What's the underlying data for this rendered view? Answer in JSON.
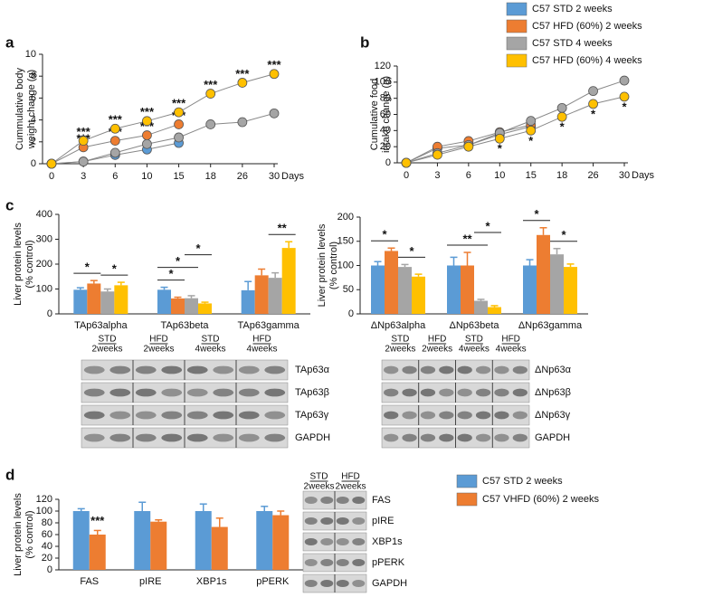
{
  "panel_labels": [
    "a",
    "b",
    "c",
    "d"
  ],
  "legend": [
    {
      "name": "C57 STD 2 weeks",
      "color": "#5b9bd5"
    },
    {
      "name": "C57 HFD (60%) 2 weeks",
      "color": "#ed7d31"
    },
    {
      "name": "C57 STD 4 weeks",
      "color": "#a5a5a5"
    },
    {
      "name": "C57 HFD (60%) 4 weeks",
      "color": "#ffc000"
    }
  ],
  "chart_data": [
    {
      "type": "line",
      "y_label": [
        "Cummulative body",
        "weight change (g)"
      ],
      "x_label": "Days",
      "categories": [
        "0",
        "3",
        "6",
        "10",
        "15",
        "18",
        "26",
        "30"
      ],
      "ylim": [
        0,
        10
      ],
      "yticks": [
        0,
        2,
        4,
        6,
        8,
        10
      ],
      "series": [
        {
          "color": "#5b9bd5",
          "values": [
            0,
            0.2,
            0.8,
            1.3,
            1.9,
            null,
            null,
            null
          ],
          "marks": [
            null,
            null,
            null,
            null,
            null,
            null,
            null,
            null
          ]
        },
        {
          "color": "#ed7d31",
          "values": [
            0,
            1.5,
            2.1,
            2.6,
            3.6,
            null,
            null,
            null
          ],
          "marks": [
            null,
            "***",
            "***",
            "***",
            "***",
            null,
            null,
            null
          ]
        },
        {
          "color": "#a5a5a5",
          "values": [
            0,
            0.2,
            1.0,
            1.8,
            2.4,
            3.6,
            3.8,
            4.6
          ],
          "marks": [
            null,
            null,
            null,
            null,
            null,
            null,
            null,
            null
          ]
        },
        {
          "color": "#ffc000",
          "values": [
            0,
            2.1,
            3.2,
            3.9,
            4.7,
            6.4,
            7.4,
            8.2
          ],
          "marks": [
            null,
            "***",
            "***",
            "***",
            "***",
            "***",
            "***",
            "***"
          ]
        }
      ]
    },
    {
      "type": "line",
      "y_label": [
        "Cumulative food",
        "intake change (g)"
      ],
      "x_label": "Days",
      "categories": [
        "0",
        "3",
        "6",
        "10",
        "15",
        "18",
        "26",
        "30"
      ],
      "ylim": [
        0,
        120
      ],
      "yticks": [
        0,
        20,
        40,
        60,
        80,
        100,
        120
      ],
      "series": [
        {
          "color": "#5b9bd5",
          "values": [
            0,
            18,
            22,
            35,
            45,
            null,
            null,
            null
          ],
          "marks": [
            null,
            null,
            null,
            null,
            null,
            null,
            null,
            null
          ]
        },
        {
          "color": "#ed7d31",
          "values": [
            0,
            20,
            27,
            38,
            47,
            null,
            null,
            null
          ],
          "marks": [
            null,
            null,
            null,
            null,
            null,
            null,
            null,
            null
          ]
        },
        {
          "color": "#a5a5a5",
          "values": [
            0,
            12,
            22,
            37,
            52,
            68,
            89,
            102
          ],
          "marks": [
            null,
            null,
            null,
            null,
            null,
            null,
            null,
            null
          ]
        },
        {
          "color": "#ffc000",
          "values": [
            0,
            10,
            20,
            30,
            40,
            57,
            73,
            82
          ],
          "marks": [
            null,
            null,
            null,
            "*",
            "*",
            "*",
            "*",
            "*"
          ]
        }
      ]
    },
    {
      "type": "bar",
      "y_label": [
        "Liver protein levels",
        "(% control)"
      ],
      "categories": [
        "TAp63alpha",
        "TAp63beta",
        "TAp63gamma"
      ],
      "ylim": [
        0,
        400
      ],
      "yticks": [
        0,
        100,
        200,
        300,
        400
      ],
      "series": [
        {
          "color": "#5b9bd5",
          "values": [
            97,
            97,
            95
          ],
          "errors": [
            8,
            10,
            35
          ]
        },
        {
          "color": "#ed7d31",
          "values": [
            122,
            62,
            155
          ],
          "errors": [
            12,
            5,
            25
          ]
        },
        {
          "color": "#a5a5a5",
          "values": [
            90,
            63,
            145
          ],
          "errors": [
            10,
            10,
            20
          ]
        },
        {
          "color": "#ffc000",
          "values": [
            115,
            42,
            265
          ],
          "errors": [
            12,
            5,
            25
          ]
        }
      ],
      "significance": [
        {
          "text": "*",
          "category": 0,
          "from": 0,
          "to": 1
        },
        {
          "text": "*",
          "category": 0,
          "from": 2,
          "to": 3
        },
        {
          "text": "*",
          "category": 1,
          "from": 0,
          "to": 1
        },
        {
          "text": "*",
          "category": 1,
          "from": 0,
          "to": 2
        },
        {
          "text": "*",
          "category": 1,
          "from": 2,
          "to": 3
        },
        {
          "text": "**",
          "category": 2,
          "from": 2,
          "to": 3
        }
      ]
    },
    {
      "type": "bar",
      "y_label": [
        "Liver protein levels",
        "(% control)"
      ],
      "categories": [
        "ΔNp63alpha",
        "ΔNp63beta",
        "ΔNp63gamma"
      ],
      "ylim": [
        0,
        200
      ],
      "yticks": [
        0,
        50,
        100,
        150,
        200
      ],
      "series": [
        {
          "color": "#5b9bd5",
          "values": [
            100,
            100,
            100
          ],
          "errors": [
            8,
            17,
            12
          ]
        },
        {
          "color": "#ed7d31",
          "values": [
            130,
            100,
            163
          ],
          "errors": [
            6,
            27,
            15
          ]
        },
        {
          "color": "#a5a5a5",
          "values": [
            97,
            27,
            123
          ],
          "errors": [
            5,
            3,
            12
          ]
        },
        {
          "color": "#ffc000",
          "values": [
            77,
            14,
            97
          ],
          "errors": [
            5,
            3,
            6
          ]
        }
      ],
      "significance": [
        {
          "text": "*",
          "category": 0,
          "from": 0,
          "to": 1
        },
        {
          "text": "*",
          "category": 0,
          "from": 2,
          "to": 3
        },
        {
          "text": "**",
          "category": 1,
          "from": 0,
          "to": 2
        },
        {
          "text": "*",
          "category": 1,
          "from": 2,
          "to": 3
        },
        {
          "text": "*",
          "category": 2,
          "from": 0,
          "to": 1
        },
        {
          "text": "*",
          "category": 2,
          "from": 2,
          "to": 3
        }
      ]
    },
    {
      "type": "bar",
      "y_label": [
        "Liver protein levels",
        "(% control)"
      ],
      "categories": [
        "FAS",
        "pIRE",
        "XBP1s",
        "pPERK"
      ],
      "ylim": [
        0,
        120
      ],
      "yticks": [
        0,
        20,
        40,
        60,
        80,
        100,
        120
      ],
      "series": [
        {
          "name": "C57 STD 2 weeks",
          "color": "#5b9bd5",
          "values": [
            100,
            100,
            100,
            100
          ],
          "errors": [
            4,
            15,
            12,
            8
          ]
        },
        {
          "name": "C57 VHFD (60%) 2 weeks",
          "color": "#ed7d31",
          "values": [
            60,
            82,
            73,
            93
          ],
          "errors": [
            7,
            3,
            15,
            7
          ],
          "marks": [
            "***",
            null,
            null,
            null
          ]
        }
      ]
    }
  ],
  "blots": [
    {
      "groups": [
        [
          "STD",
          "2weeks"
        ],
        [
          "HFD",
          "2weeks"
        ],
        [
          "STD",
          "4weeks"
        ],
        [
          "HFD",
          "4weeks"
        ]
      ],
      "rows": [
        "TAp63α",
        "TAp63β",
        "TAp63γ",
        "GAPDH"
      ]
    },
    {
      "groups": [
        [
          "STD",
          "2weeks"
        ],
        [
          "HFD",
          "2weeks"
        ],
        [
          "STD",
          "4weeks"
        ],
        [
          "HFD",
          "4weeks"
        ]
      ],
      "rows": [
        "ΔNp63α",
        "ΔNp63β",
        "ΔNp63γ",
        "GAPDH"
      ]
    },
    {
      "groups": [
        [
          "STD",
          "2weeks"
        ],
        [
          "HFD",
          "2weeks"
        ]
      ],
      "rows": [
        "FAS",
        "pIRE",
        "XBP1s",
        "pPERK",
        "GAPDH"
      ]
    }
  ]
}
